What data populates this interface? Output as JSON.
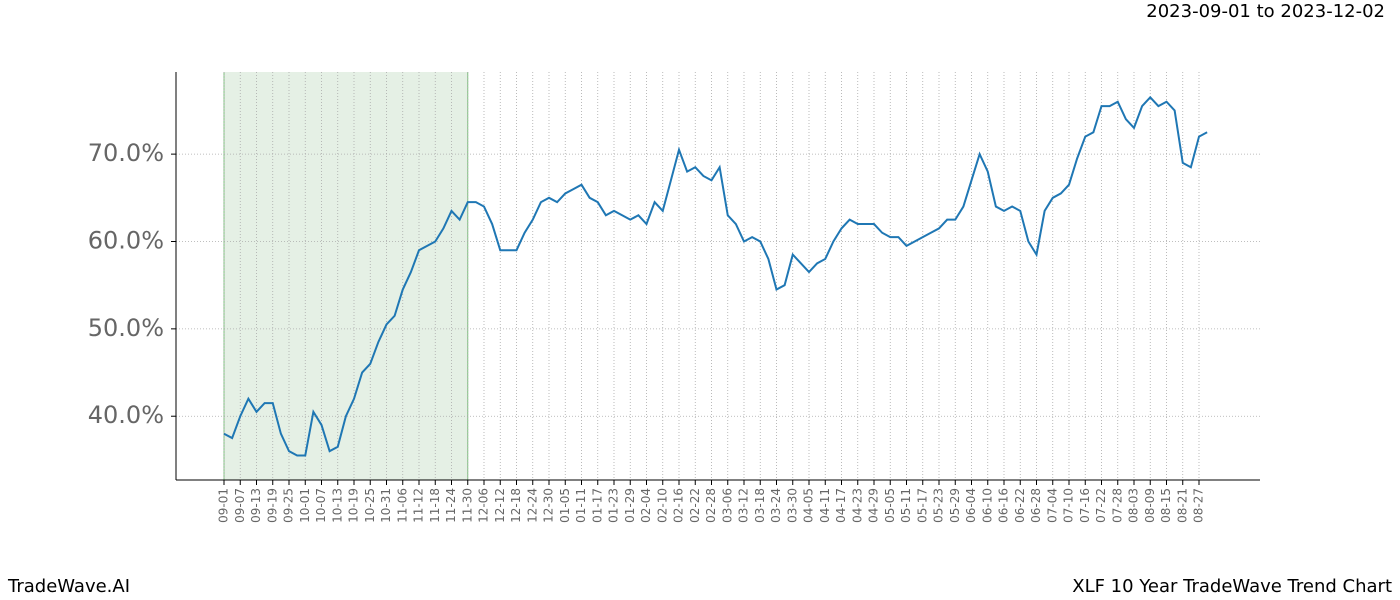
{
  "header": {
    "date_range": "2023-09-01 to 2023-12-02"
  },
  "footer": {
    "brand": "TradeWave.AI",
    "chart_name": "XLF 10 Year TradeWave Trend Chart"
  },
  "chart_data": {
    "type": "line",
    "categories": [
      "09-01",
      null,
      "09-07",
      null,
      "09-13",
      null,
      "09-19",
      null,
      "09-25",
      null,
      "10-01",
      null,
      "10-07",
      null,
      "10-13",
      null,
      "10-19",
      null,
      "10-25",
      null,
      "10-31",
      null,
      "11-06",
      null,
      "11-12",
      null,
      "11-18",
      null,
      "11-24",
      null,
      "11-30",
      null,
      "12-06",
      null,
      "12-12",
      null,
      "12-18",
      null,
      "12-24",
      null,
      "12-30",
      null,
      "01-05",
      null,
      "01-11",
      null,
      "01-17",
      null,
      "01-23",
      null,
      "01-29",
      null,
      "02-04",
      null,
      "02-10",
      null,
      "02-16",
      null,
      "02-22",
      null,
      "02-28",
      null,
      "03-06",
      null,
      "03-12",
      null,
      "03-18",
      null,
      "03-24",
      null,
      "03-30",
      null,
      "04-05",
      null,
      "04-11",
      null,
      "04-17",
      null,
      "04-23",
      null,
      "04-29",
      null,
      "05-05",
      null,
      "05-11",
      null,
      "05-17",
      null,
      "05-23",
      null,
      "05-29",
      null,
      "06-04",
      null,
      "06-10",
      null,
      "06-16",
      null,
      "06-22",
      null,
      "06-28",
      null,
      "07-04",
      null,
      "07-10",
      null,
      "07-16",
      null,
      "07-22",
      null,
      "07-28",
      null,
      "08-03",
      null,
      "08-09",
      null,
      "08-15",
      null,
      "08-21",
      null,
      "08-27",
      null
    ],
    "values": [
      38.0,
      37.5,
      40.0,
      42.0,
      40.5,
      41.5,
      41.5,
      38,
      36,
      35.5,
      35.5,
      40.5,
      39,
      36,
      36.5,
      40,
      42,
      45,
      46,
      48.5,
      50.5,
      51.5,
      54.5,
      56.5,
      59,
      59.5,
      60,
      61.5,
      63.5,
      62.5,
      64.5,
      64.5,
      64,
      62,
      59,
      59,
      59,
      61,
      62.5,
      64.5,
      65,
      64.5,
      65.5,
      66,
      66.5,
      65,
      64.5,
      63,
      63.5,
      63,
      62.5,
      63,
      62,
      64.5,
      63.5,
      67,
      70.5,
      68,
      68.5,
      67.5,
      67,
      68.5,
      63,
      62,
      60,
      60.5,
      60,
      58,
      54.5,
      55,
      58.5,
      57.5,
      56.5,
      57.5,
      58,
      60,
      61.5,
      62.5,
      62,
      62,
      62,
      61,
      60.5,
      60.5,
      59.5,
      60,
      60.5,
      61,
      61.5,
      62.5,
      62.5,
      64,
      67,
      70,
      68,
      64,
      63.5,
      64,
      63.5,
      60,
      58.5,
      63.5,
      65,
      65.5,
      66.5,
      69.5,
      72,
      72.5,
      75.5,
      75.5,
      76,
      74,
      73,
      75.5,
      76.5,
      75.5,
      76,
      75,
      69,
      68.5,
      72,
      72.5
    ],
    "color": "#1f77b4",
    "highlight": {
      "from": "09-01",
      "to": "11-30",
      "color": "#e5f0e5"
    },
    "ylim": [
      32.7,
      79.4
    ],
    "yticks": [
      {
        "value": 40,
        "label": "40.0%"
      },
      {
        "value": 50,
        "label": "50.0%"
      },
      {
        "value": 60,
        "label": "60.0%"
      },
      {
        "value": 70,
        "label": "70.0%"
      }
    ],
    "grid": true
  }
}
